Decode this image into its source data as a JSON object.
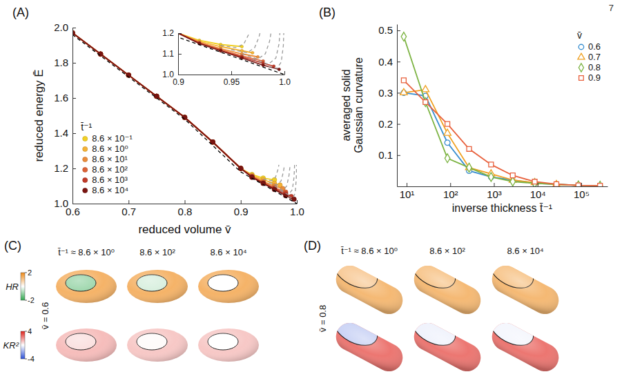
{
  "page": {
    "number": "7"
  },
  "chart_data": [
    {
      "type": "line",
      "title": "(A)",
      "x_label": "reduced volume v̄",
      "y_label": "reduced energy Ē",
      "xlim": [
        0.6,
        1.0
      ],
      "xticks": [
        0.6,
        0.7,
        0.8,
        0.9,
        {
          "value": 1.0,
          "label": "1.0"
        }
      ],
      "ylim": [
        1.0,
        2.0
      ],
      "yticks": [
        {
          "value": 1.0,
          "label": "1.0"
        },
        1.2,
        1.4,
        1.6,
        1.8,
        {
          "value": 2.0,
          "label": "2.0"
        }
      ],
      "legend": "lower left",
      "legend_title": "t̄⁻¹",
      "inset": {
        "xlim": [
          0.9,
          1.0
        ],
        "xticks": [
          0.9,
          0.95,
          {
            "value": 1.0,
            "label": "1.0"
          }
        ],
        "ylim": [
          1.0,
          1.2
        ],
        "yticks": [
          {
            "value": 1.0,
            "label": "1.0"
          },
          1.1,
          1.2
        ]
      },
      "series": [
        {
          "name": "8.6 × 10⁻¹",
          "color": "#f2d024",
          "marker": "circle",
          "line_style": "solid",
          "x": [
            0.6,
            0.65,
            0.7,
            0.75,
            0.8,
            0.85,
            0.9,
            0.92,
            0.94,
            0.96
          ],
          "values": [
            1.97,
            1.85,
            1.73,
            1.61,
            1.49,
            1.35,
            1.2,
            1.165,
            1.145,
            1.135
          ]
        },
        {
          "name": "8.6 × 10⁰",
          "color": "#f5b335",
          "marker": "circle",
          "line_style": "solid",
          "x": [
            0.6,
            0.65,
            0.7,
            0.75,
            0.8,
            0.85,
            0.9,
            0.92,
            0.94,
            0.96,
            0.97
          ],
          "values": [
            1.97,
            1.85,
            1.73,
            1.61,
            1.49,
            1.35,
            1.2,
            1.16,
            1.135,
            1.115,
            1.105
          ]
        },
        {
          "name": "8.6 × 10¹",
          "color": "#eb8c3a",
          "marker": "circle",
          "line_style": "solid",
          "x": [
            0.6,
            0.65,
            0.7,
            0.75,
            0.8,
            0.85,
            0.9,
            0.92,
            0.94,
            0.96,
            0.975
          ],
          "values": [
            1.97,
            1.85,
            1.73,
            1.61,
            1.49,
            1.35,
            1.2,
            1.155,
            1.125,
            1.1,
            1.085
          ]
        },
        {
          "name": "8.6 × 10²",
          "color": "#dc6236",
          "marker": "circle",
          "line_style": "solid",
          "x": [
            0.6,
            0.65,
            0.7,
            0.75,
            0.8,
            0.85,
            0.9,
            0.92,
            0.94,
            0.96,
            0.98
          ],
          "values": [
            1.97,
            1.85,
            1.73,
            1.61,
            1.49,
            1.35,
            1.2,
            1.155,
            1.12,
            1.09,
            1.065
          ]
        },
        {
          "name": "8.6 × 10³",
          "color": "#c03a28",
          "marker": "circle",
          "line_style": "solid",
          "x": [
            0.6,
            0.65,
            0.7,
            0.75,
            0.8,
            0.85,
            0.9,
            0.92,
            0.94,
            0.96,
            0.98,
            0.99
          ],
          "values": [
            1.97,
            1.85,
            1.73,
            1.61,
            1.49,
            1.35,
            1.2,
            1.15,
            1.115,
            1.085,
            1.055,
            1.04
          ]
        },
        {
          "name": "8.6 × 10⁴",
          "color": "#7a1410",
          "marker": "circle",
          "line_style": "solid",
          "x": [
            0.6,
            0.65,
            0.7,
            0.75,
            0.8,
            0.85,
            0.9,
            0.92,
            0.94,
            0.96,
            0.98,
            0.995
          ],
          "values": [
            1.97,
            1.85,
            1.73,
            1.61,
            1.49,
            1.35,
            1.2,
            1.15,
            1.115,
            1.08,
            1.045,
            1.025
          ]
        },
        {
          "color": "#000000",
          "line_style": "dashed",
          "x": [
            0.6,
            0.7,
            0.8,
            0.9,
            0.95,
            1.0
          ],
          "values": [
            1.96,
            1.72,
            1.48,
            1.18,
            1.09,
            1.0
          ]
        },
        {
          "color": "#9a9a9a",
          "line_style": "dashed",
          "x": [
            0.94,
            0.955,
            0.962,
            0.966,
            0.968
          ],
          "values": [
            1.14,
            1.13,
            1.15,
            1.19,
            1.22
          ]
        },
        {
          "color": "#9a9a9a",
          "line_style": "dashed",
          "x": [
            0.95,
            0.965,
            0.972,
            0.976,
            0.978
          ],
          "values": [
            1.12,
            1.105,
            1.13,
            1.18,
            1.22
          ]
        },
        {
          "color": "#9a9a9a",
          "line_style": "dashed",
          "x": [
            0.96,
            0.975,
            0.982,
            0.986,
            0.988
          ],
          "values": [
            1.1,
            1.075,
            1.1,
            1.16,
            1.22
          ]
        },
        {
          "color": "#9a9a9a",
          "line_style": "dashed",
          "x": [
            0.97,
            0.985,
            0.992,
            0.995,
            0.996
          ],
          "values": [
            1.075,
            1.05,
            1.08,
            1.15,
            1.22
          ]
        },
        {
          "color": "#9a9a9a",
          "line_style": "dashed",
          "x": [
            0.985,
            0.993,
            0.997,
            0.999,
            0.9995
          ],
          "values": [
            1.04,
            1.03,
            1.06,
            1.14,
            1.22
          ]
        }
      ]
    },
    {
      "type": "line",
      "title": "(B)",
      "x_label": "inverse thickness t̄⁻¹",
      "y_label": "averaged solid Gaussian curvature",
      "log": "x",
      "xlim": [
        6,
        400000
      ],
      "xticks": [
        {
          "value": 10,
          "label": "10¹"
        },
        {
          "value": 100,
          "label": "10²"
        },
        {
          "value": 1000,
          "label": "10³"
        },
        {
          "value": 10000,
          "label": "10⁴"
        },
        {
          "value": 100000,
          "label": "10⁵"
        }
      ],
      "ylim": [
        0,
        0.52
      ],
      "yticks": [
        0.1,
        0.2,
        0.3,
        0.4,
        0.5
      ],
      "legend": "upper right",
      "legend_title": "v̄",
      "series": [
        {
          "name": "0.6",
          "color": "#3a8fd0",
          "marker": "circle",
          "line_style": "solid",
          "x": [
            8.6,
            27,
            86,
            270,
            860,
            8600,
            86000
          ],
          "values": [
            0.3,
            0.29,
            0.14,
            0.05,
            0.03,
            0.01,
            0.003
          ]
        },
        {
          "name": "0.7",
          "color": "#f0a020",
          "marker": "triangle",
          "line_style": "solid",
          "x": [
            8.6,
            27,
            86,
            270,
            860,
            2700,
            8600,
            27000,
            86000
          ],
          "values": [
            0.3,
            0.31,
            0.17,
            0.06,
            0.04,
            0.02,
            0.012,
            0.006,
            0.003
          ]
        },
        {
          "name": "0.8",
          "color": "#7cb342",
          "marker": "diamond",
          "line_style": "solid",
          "x": [
            8.6,
            27,
            86,
            270,
            860,
            2700,
            8600,
            86000,
            270000
          ],
          "values": [
            0.48,
            0.27,
            0.09,
            0.06,
            0.03,
            0.015,
            0.01,
            0.003,
            0.002
          ]
        },
        {
          "name": "0.9",
          "color": "#e8603c",
          "marker": "square",
          "line_style": "solid",
          "x": [
            8.6,
            27,
            86,
            270,
            860,
            2700,
            8600,
            27000,
            86000,
            270000
          ],
          "values": [
            0.34,
            0.27,
            0.2,
            0.12,
            0.07,
            0.035,
            0.015,
            0.007,
            0.003,
            0.002
          ]
        }
      ]
    },
    {
      "type": "surface_map",
      "title": "(C)",
      "column_labels": [
        "t̄⁻¹ ≈ 8.6 × 10⁰",
        "8.6 × 10²",
        "8.6 × 10⁴"
      ],
      "row_label": "v̄ = 0.6",
      "colorbars": [
        {
          "name": "HR",
          "range": [
            -2,
            2
          ],
          "ticks": [
            -2,
            2
          ]
        },
        {
          "name": "KR²",
          "range": [
            -4,
            4
          ],
          "ticks": [
            -4,
            4
          ]
        }
      ],
      "rows": [
        {
          "values": [
            [
              1.3,
              -1.0
            ],
            [
              1.3,
              -0.4
            ],
            [
              1.3,
              0.0
            ]
          ]
        },
        {
          "values": [
            [
              1.2,
              0.6
            ],
            [
              1.0,
              0.1
            ],
            [
              1.0,
              0.0
            ]
          ]
        }
      ]
    },
    {
      "type": "surface_map",
      "title": "(D)",
      "column_labels": [
        "t̄⁻¹ ≈ 8.6 × 10⁰",
        "8.6 × 10²",
        "8.6 × 10⁴"
      ],
      "row_label": "v̄ = 0.8",
      "rows": [
        {
          "values": [
            [
              1.2,
              0.9
            ],
            [
              1.2,
              1.0
            ],
            [
              1.2,
              1.0
            ]
          ]
        },
        {
          "values": [
            [
              2.5,
              -1.0
            ],
            [
              2.5,
              -0.3
            ],
            [
              2.5,
              -0.2
            ]
          ]
        }
      ]
    }
  ]
}
